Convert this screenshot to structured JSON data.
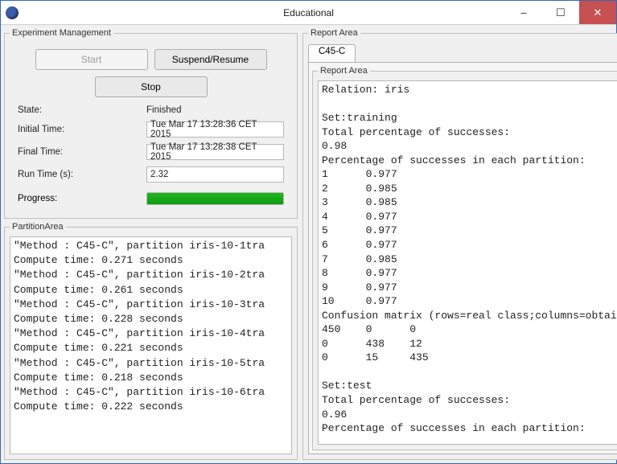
{
  "window": {
    "title": "Educational",
    "min_label": "–",
    "max_label": "☐",
    "close_label": "✕"
  },
  "experiment": {
    "legend": "Experiment Management",
    "start_label": "Start",
    "start_disabled": true,
    "suspend_label": "Suspend/Resume",
    "stop_label": "Stop",
    "state_label": "State:",
    "state_value": "Finished",
    "initial_time_label": "Initial Time:",
    "initial_time_value": "Tue Mar 17 13:28:36 CET 2015",
    "final_time_label": "Final Time:",
    "final_time_value": "Tue Mar 17 13:28:38 CET 2015",
    "run_time_label": "Run Time (s):",
    "run_time_value": "2.32",
    "progress_label": "Progress:",
    "progress_percent": 100,
    "progress_fill_color": "#1fb81f",
    "progress_bg_color": "#e6e6e6"
  },
  "partition": {
    "legend": "PartitionArea",
    "text": "\"Method : C45-C\", partition iris-10-1tra\nCompute time: 0.271 seconds\n\"Method : C45-C\", partition iris-10-2tra\nCompute time: 0.261 seconds\n\"Method : C45-C\", partition iris-10-3tra\nCompute time: 0.228 seconds\n\"Method : C45-C\", partition iris-10-4tra\nCompute time: 0.221 seconds\n\"Method : C45-C\", partition iris-10-5tra\nCompute time: 0.218 seconds\n\"Method : C45-C\", partition iris-10-6tra\nCompute time: 0.222 seconds"
  },
  "report": {
    "legend": "Report Area",
    "tab_label": "C45-C",
    "inner_legend": "Report Area",
    "text": "Relation: iris\n\nSet:training\nTotal percentage of successes:\n0.98\nPercentage of successes in each partition:\n1      0.977\n2      0.985\n3      0.985\n4      0.977\n5      0.977\n6      0.977\n7      0.985\n8      0.977\n9      0.977\n10     0.977\nConfusion matrix (rows=real class;columns=obtained class):\n450    0      0\n0      438    12\n0      15     435\n\nSet:test\nTotal percentage of successes:\n0.96\nPercentage of successes in each partition:"
  },
  "colors": {
    "window_border": "#2e6bbd",
    "panel_bg": "#f0f0f0",
    "field_border": "#b8b8b8",
    "close_bg": "#c75050"
  }
}
